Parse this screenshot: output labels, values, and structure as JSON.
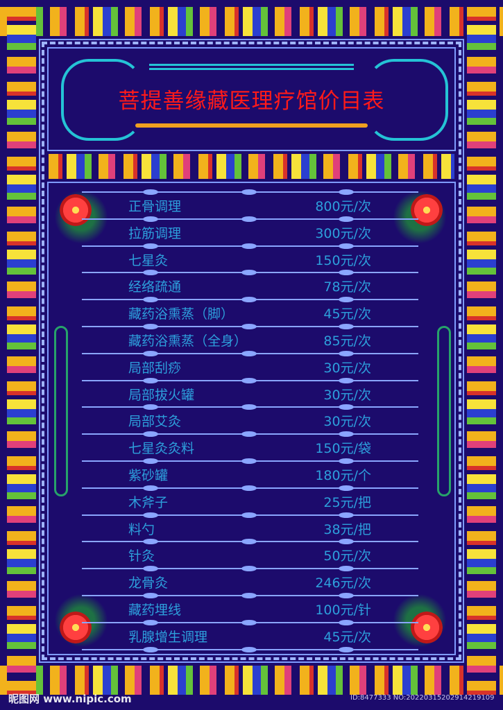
{
  "title": "菩提善缘藏医理疗馆价目表",
  "items": [
    {
      "name": "正骨调理",
      "price": "800元/次"
    },
    {
      "name": "拉筋调理",
      "price": "300元/次"
    },
    {
      "name": "七星灸",
      "price": "150元/次"
    },
    {
      "name": "经络疏通",
      "price": "78元/次"
    },
    {
      "name": "藏药浴熏蒸（脚）",
      "price": "45元/次"
    },
    {
      "name": "藏药浴熏蒸（全身）",
      "price": "85元/次"
    },
    {
      "name": "局部刮痧",
      "price": "30元/次"
    },
    {
      "name": "局部拔火罐",
      "price": "30元/次"
    },
    {
      "name": "局部艾灸",
      "price": "30元/次"
    },
    {
      "name": "七星灸灸料",
      "price": "150元/袋"
    },
    {
      "name": "紫砂罐",
      "price": "180元/个"
    },
    {
      "name": "木斧子",
      "price": "25元/把"
    },
    {
      "name": "料勺",
      "price": "38元/把"
    },
    {
      "name": "针灸",
      "price": "50元/次"
    },
    {
      "name": "龙骨灸",
      "price": "246元/次"
    },
    {
      "name": "藏药埋线",
      "price": "100元/针"
    },
    {
      "name": "乳腺增生调理",
      "price": "45元/次"
    }
  ],
  "watermark": {
    "site": "昵图网 www.nipic.com",
    "id": "ID:8477333 NO:20220315202914219109"
  },
  "colors": {
    "background": "#1c0b6c",
    "title": "#ff1a1a",
    "text": "#2d9fdc",
    "divider": "#8aa6ff"
  }
}
